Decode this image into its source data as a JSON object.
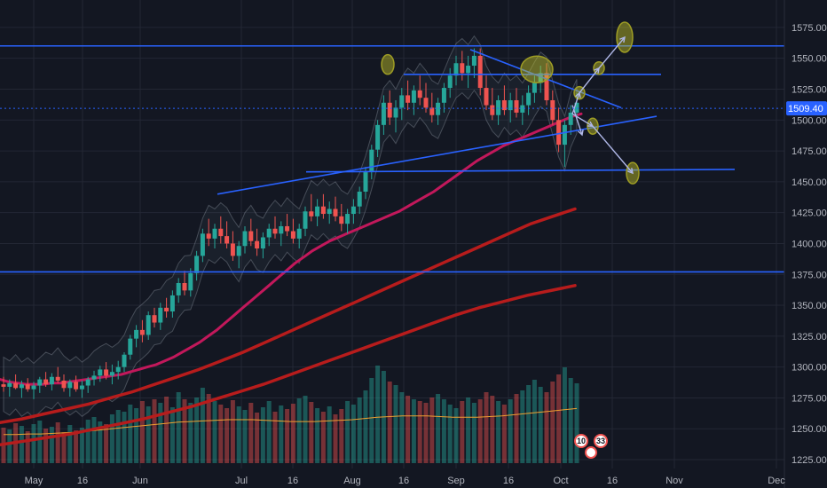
{
  "chart_data": {
    "type": "candlestick",
    "y_axis": {
      "range": [
        1220,
        1590
      ],
      "ticks": [
        1575.0,
        1550.0,
        1525.0,
        1500.0,
        1475.0,
        1450.0,
        1425.0,
        1400.0,
        1375.0,
        1350.0,
        1325.0,
        1300.0,
        1275.0,
        1250.0,
        1225.0
      ],
      "tick_labels": [
        "1575.00",
        "1550.00",
        "1525.00",
        "1500.00",
        "1475.00",
        "1450.00",
        "1425.00",
        "1400.00",
        "1375.00",
        "1350.00",
        "1325.00",
        "1300.00",
        "1275.00",
        "1250.00",
        "1225.00"
      ]
    },
    "x_axis": {
      "labels": [
        "May",
        "16",
        "Jun",
        "Jul",
        "16",
        "Aug",
        "16",
        "Sep",
        "16",
        "Oct",
        "16",
        "Nov",
        "Dec"
      ]
    },
    "last_price": "1509.40",
    "last_price_value": 1509.4,
    "grid": true,
    "badges": [
      "10",
      "33"
    ],
    "colors": {
      "background": "#131722",
      "grid": "#232734",
      "up": "#26a69a",
      "down": "#ef5350",
      "trendline": "#2962ff",
      "ma_short": "#c2185b",
      "ma_long": "#b71c1c",
      "volume_ma": "#f0a030",
      "price_tag": "#2962ff",
      "marker": "#9e9d24"
    },
    "horizontal_levels": [
      1560,
      1377
    ],
    "ohlc": [
      [
        1286,
        1292,
        1280,
        1284
      ],
      [
        1284,
        1290,
        1276,
        1287
      ],
      [
        1287,
        1294,
        1282,
        1283
      ],
      [
        1283,
        1289,
        1275,
        1286
      ],
      [
        1286,
        1291,
        1280,
        1282
      ],
      [
        1282,
        1288,
        1274,
        1285
      ],
      [
        1285,
        1292,
        1279,
        1290
      ],
      [
        1290,
        1296,
        1284,
        1286
      ],
      [
        1286,
        1295,
        1281,
        1292
      ],
      [
        1292,
        1300,
        1287,
        1289
      ],
      [
        1289,
        1294,
        1280,
        1283
      ],
      [
        1283,
        1290,
        1276,
        1288
      ],
      [
        1288,
        1293,
        1280,
        1282
      ],
      [
        1282,
        1289,
        1275,
        1285
      ],
      [
        1285,
        1292,
        1279,
        1290
      ],
      [
        1290,
        1297,
        1285,
        1293
      ],
      [
        1293,
        1301,
        1288,
        1298
      ],
      [
        1298,
        1304,
        1290,
        1293
      ],
      [
        1293,
        1302,
        1286,
        1296
      ],
      [
        1296,
        1305,
        1290,
        1300
      ],
      [
        1300,
        1312,
        1296,
        1310
      ],
      [
        1310,
        1326,
        1306,
        1323
      ],
      [
        1323,
        1334,
        1316,
        1330
      ],
      [
        1330,
        1338,
        1320,
        1326
      ],
      [
        1326,
        1345,
        1322,
        1342
      ],
      [
        1342,
        1348,
        1332,
        1336
      ],
      [
        1336,
        1352,
        1330,
        1348
      ],
      [
        1348,
        1356,
        1340,
        1345
      ],
      [
        1345,
        1362,
        1340,
        1358
      ],
      [
        1358,
        1372,
        1352,
        1368
      ],
      [
        1368,
        1378,
        1358,
        1362
      ],
      [
        1362,
        1380,
        1357,
        1376
      ],
      [
        1376,
        1394,
        1370,
        1390
      ],
      [
        1390,
        1412,
        1385,
        1408
      ],
      [
        1408,
        1420,
        1398,
        1404
      ],
      [
        1404,
        1416,
        1396,
        1412
      ],
      [
        1412,
        1422,
        1400,
        1406
      ],
      [
        1406,
        1418,
        1396,
        1400
      ],
      [
        1400,
        1410,
        1386,
        1390
      ],
      [
        1390,
        1402,
        1380,
        1398
      ],
      [
        1398,
        1414,
        1392,
        1410
      ],
      [
        1410,
        1420,
        1398,
        1402
      ],
      [
        1402,
        1412,
        1390,
        1396
      ],
      [
        1396,
        1409,
        1388,
        1405
      ],
      [
        1405,
        1416,
        1398,
        1412
      ],
      [
        1412,
        1422,
        1404,
        1408
      ],
      [
        1408,
        1418,
        1398,
        1414
      ],
      [
        1414,
        1424,
        1406,
        1410
      ],
      [
        1410,
        1420,
        1400,
        1404
      ],
      [
        1404,
        1416,
        1396,
        1412
      ],
      [
        1412,
        1430,
        1406,
        1426
      ],
      [
        1426,
        1440,
        1418,
        1422
      ],
      [
        1422,
        1436,
        1414,
        1430
      ],
      [
        1430,
        1440,
        1420,
        1424
      ],
      [
        1424,
        1434,
        1416,
        1428
      ],
      [
        1428,
        1438,
        1418,
        1422
      ],
      [
        1422,
        1432,
        1410,
        1416
      ],
      [
        1416,
        1428,
        1408,
        1424
      ],
      [
        1424,
        1436,
        1416,
        1430
      ],
      [
        1430,
        1446,
        1424,
        1442
      ],
      [
        1442,
        1462,
        1436,
        1458
      ],
      [
        1458,
        1480,
        1452,
        1476
      ],
      [
        1476,
        1500,
        1470,
        1496
      ],
      [
        1496,
        1520,
        1488,
        1514
      ],
      [
        1514,
        1524,
        1496,
        1502
      ],
      [
        1502,
        1516,
        1490,
        1510
      ],
      [
        1510,
        1526,
        1500,
        1520
      ],
      [
        1520,
        1532,
        1508,
        1514
      ],
      [
        1514,
        1528,
        1504,
        1524
      ],
      [
        1524,
        1536,
        1512,
        1518
      ],
      [
        1518,
        1530,
        1506,
        1510
      ],
      [
        1510,
        1522,
        1498,
        1504
      ],
      [
        1504,
        1518,
        1496,
        1514
      ],
      [
        1514,
        1530,
        1506,
        1526
      ],
      [
        1526,
        1542,
        1518,
        1536
      ],
      [
        1536,
        1552,
        1528,
        1546
      ],
      [
        1546,
        1556,
        1532,
        1538
      ],
      [
        1538,
        1552,
        1526,
        1544
      ],
      [
        1544,
        1558,
        1534,
        1552
      ],
      [
        1552,
        1558,
        1520,
        1526
      ],
      [
        1526,
        1536,
        1508,
        1512
      ],
      [
        1512,
        1526,
        1500,
        1504
      ],
      [
        1504,
        1520,
        1496,
        1516
      ],
      [
        1516,
        1528,
        1504,
        1508
      ],
      [
        1508,
        1522,
        1498,
        1516
      ],
      [
        1516,
        1526,
        1502,
        1506
      ],
      [
        1506,
        1520,
        1496,
        1512
      ],
      [
        1512,
        1528,
        1504,
        1522
      ],
      [
        1522,
        1536,
        1514,
        1530
      ],
      [
        1530,
        1544,
        1522,
        1538
      ],
      [
        1538,
        1546,
        1512,
        1516
      ],
      [
        1516,
        1524,
        1496,
        1500
      ],
      [
        1500,
        1510,
        1474,
        1480
      ],
      [
        1480,
        1500,
        1462,
        1496
      ],
      [
        1496,
        1512,
        1488,
        1506
      ],
      [
        1506,
        1522,
        1500,
        1514
      ]
    ],
    "ma_short": [
      1290,
      1288,
      1287,
      1286,
      1286,
      1286,
      1287,
      1287,
      1288,
      1289,
      1290,
      1291,
      1292,
      1293,
      1294,
      1296,
      1298,
      1300,
      1302,
      1305,
      1308,
      1312,
      1316,
      1320,
      1325,
      1330,
      1336,
      1342,
      1348,
      1354,
      1360,
      1366,
      1372,
      1378,
      1384,
      1389,
      1394,
      1398,
      1402,
      1405,
      1408,
      1411,
      1414,
      1417,
      1420,
      1423,
      1426,
      1430,
      1434,
      1438,
      1442,
      1447,
      1452,
      1457,
      1462,
      1467,
      1471,
      1475,
      1479,
      1482,
      1485,
      1488,
      1491,
      1494,
      1497,
      1500,
      1503,
      1505
    ],
    "ma_long_1": [
      1255,
      1258,
      1262,
      1266,
      1270,
      1275,
      1280,
      1286,
      1292,
      1298,
      1305,
      1312,
      1320,
      1328,
      1336,
      1344,
      1352,
      1360,
      1368,
      1376,
      1384,
      1392,
      1400,
      1408,
      1416,
      1422,
      1428
    ],
    "ma_long_2": [
      1237,
      1240,
      1243,
      1246,
      1250,
      1254,
      1258,
      1263,
      1268,
      1274,
      1280,
      1286,
      1293,
      1300,
      1307,
      1314,
      1321,
      1328,
      1335,
      1342,
      1348,
      1353,
      1358,
      1362,
      1366
    ],
    "volume": [
      40,
      38,
      45,
      42,
      36,
      44,
      48,
      39,
      41,
      46,
      35,
      43,
      37,
      40,
      49,
      52,
      47,
      44,
      55,
      60,
      58,
      66,
      62,
      70,
      64,
      72,
      68,
      75,
      63,
      80,
      72,
      68,
      74,
      85,
      78,
      70,
      66,
      62,
      71,
      64,
      60,
      68,
      57,
      63,
      70,
      58,
      65,
      61,
      67,
      73,
      76,
      69,
      62,
      58,
      64,
      55,
      61,
      70,
      66,
      74,
      82,
      96,
      110,
      104,
      92,
      88,
      80,
      76,
      72,
      70,
      68,
      74,
      78,
      72,
      66,
      62,
      70,
      74,
      68,
      72,
      80,
      76,
      70,
      66,
      72,
      78,
      82,
      88,
      94,
      86,
      80,
      92,
      100,
      108,
      96,
      90
    ],
    "volume_ma": [
      46,
      46,
      47,
      47,
      48,
      49,
      50,
      52,
      54,
      56,
      58,
      60,
      62,
      64,
      66,
      67,
      68,
      69,
      70,
      70,
      70,
      69,
      68,
      67,
      67,
      67,
      68,
      69,
      70,
      72,
      74,
      75,
      76,
      76,
      76,
      75,
      74,
      74,
      74,
      75,
      76,
      78,
      80,
      82,
      84,
      86,
      88
    ]
  }
}
